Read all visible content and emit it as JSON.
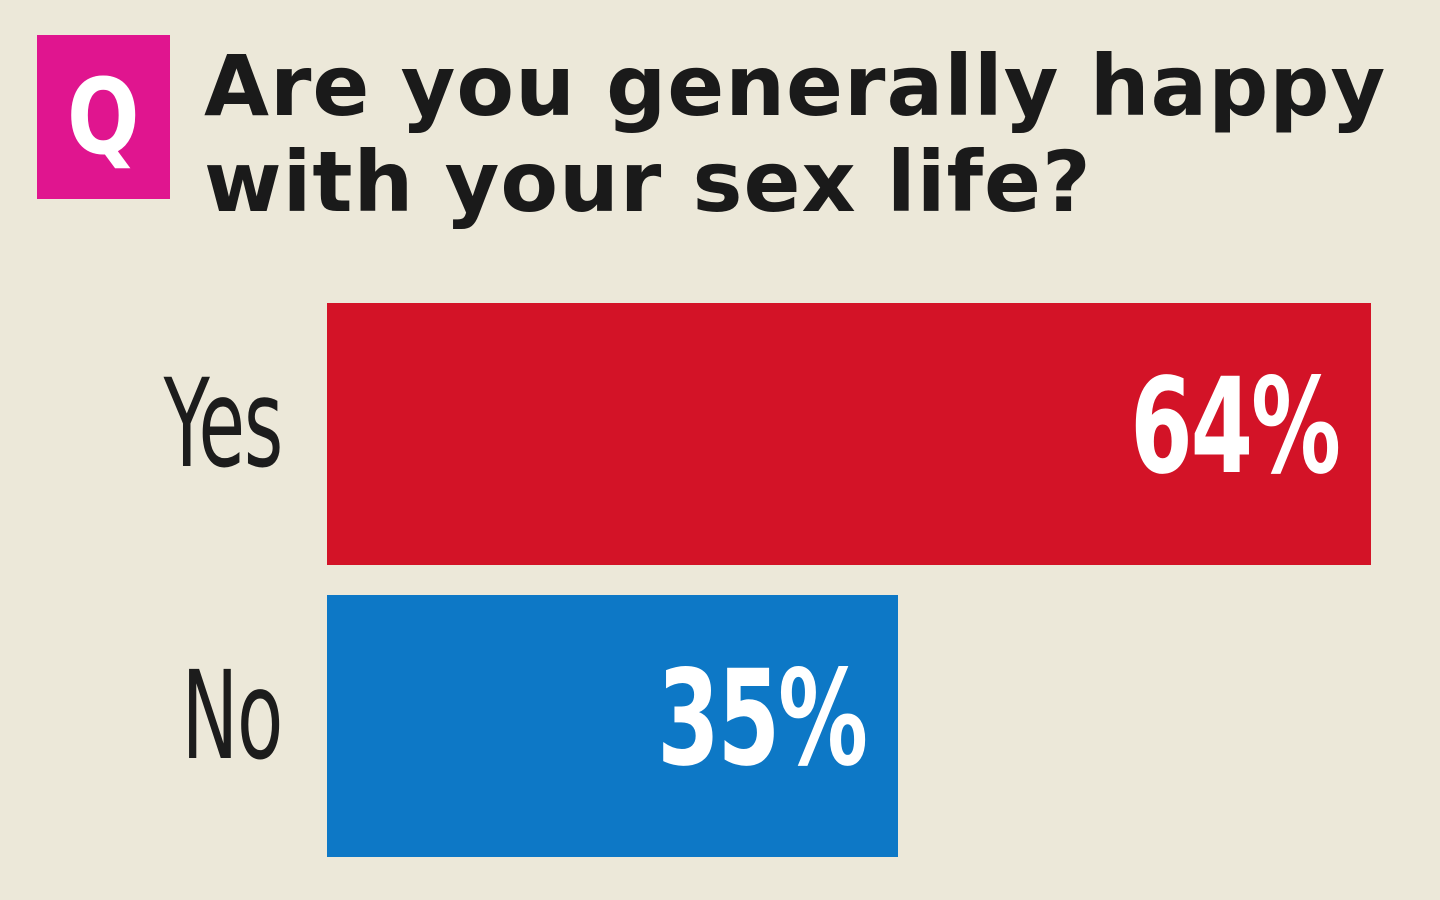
{
  "badge": {
    "letter": "Q",
    "color": "#e0158f"
  },
  "question": {
    "line1": "Are you generally happy",
    "line2": "with your sex life?"
  },
  "chart_data": {
    "type": "bar",
    "orientation": "horizontal",
    "categories": [
      "Yes",
      "No"
    ],
    "values": [
      64,
      35
    ],
    "data_labels": [
      "64%",
      "35%"
    ],
    "colors": [
      "#d31327",
      "#0d78c6"
    ],
    "xlim": [
      0,
      64
    ],
    "grid": false,
    "legend": "none"
  }
}
